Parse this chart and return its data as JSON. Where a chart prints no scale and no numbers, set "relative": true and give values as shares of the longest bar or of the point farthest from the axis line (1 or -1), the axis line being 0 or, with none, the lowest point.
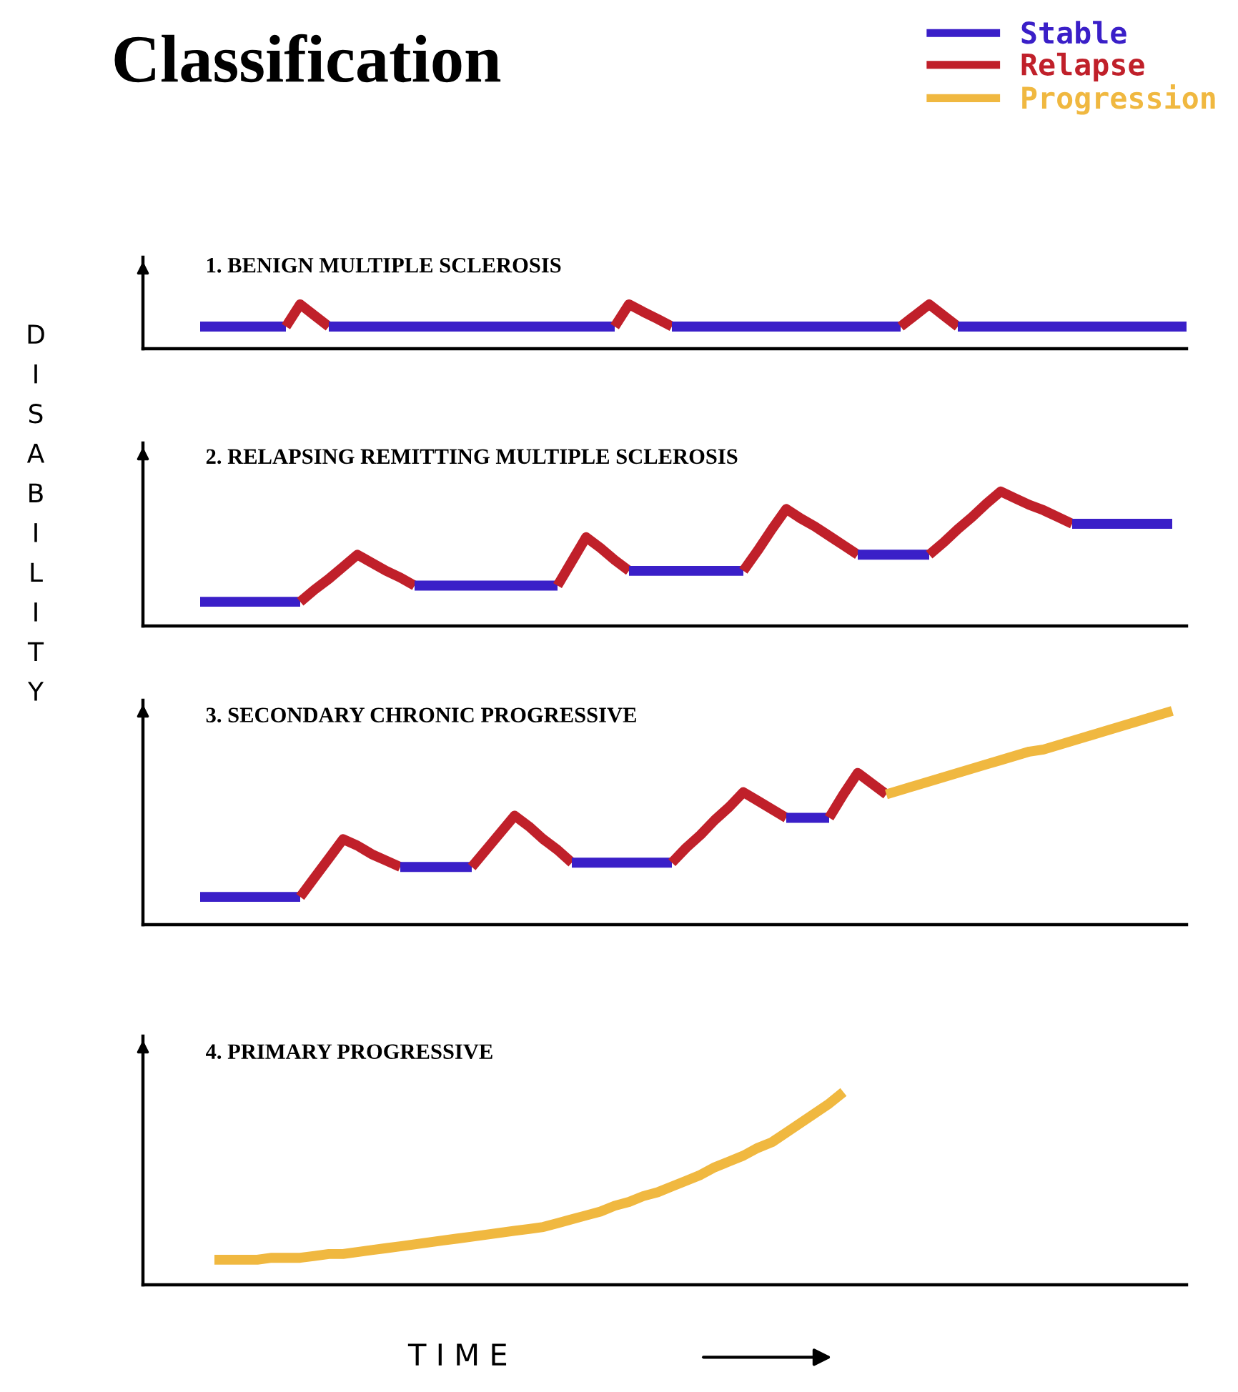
{
  "chart_data": [
    {
      "type": "line",
      "title": "Classification",
      "subtitle": "1. BENIGN MULTIPLE SCLEROSIS",
      "ylabel": "DISABILITY",
      "relative": true,
      "grid": false,
      "legend": false,
      "categories": [
        null,
        null,
        null,
        null,
        null,
        null,
        null,
        null,
        null,
        null,
        null,
        null,
        null,
        null,
        null,
        null,
        null,
        null,
        null,
        null,
        null,
        null,
        null,
        null,
        null,
        null,
        null,
        null,
        null,
        null,
        null,
        null,
        null,
        null,
        null,
        null,
        null,
        null,
        null,
        null,
        null,
        null,
        null,
        null,
        null,
        null,
        null,
        null,
        null,
        null,
        null,
        null,
        null,
        null,
        null,
        null,
        null,
        null,
        null,
        null,
        null,
        null,
        null,
        null,
        null,
        null,
        null,
        null,
        null,
        null
      ],
      "series": [
        {
          "color": "#3a1fc8",
          "values": [
            0.5,
            0.5,
            0.5,
            0.5,
            0.5,
            0.5,
            0.5,
            null,
            null,
            null,
            null,
            null,
            null,
            null,
            null,
            null,
            null,
            null,
            null,
            null,
            null,
            null,
            null,
            null,
            null,
            null,
            null,
            null,
            null,
            null,
            null,
            null,
            null,
            null,
            null,
            null,
            null,
            null,
            null,
            null,
            null,
            null,
            null,
            null,
            null,
            null,
            null,
            null,
            null,
            null,
            null,
            null,
            null,
            null,
            null,
            null,
            null,
            null,
            null,
            null,
            null,
            null,
            null,
            null,
            null,
            null,
            null,
            null,
            null,
            null
          ]
        },
        {
          "color": "#c0202a",
          "values": [
            null,
            null,
            null,
            null,
            null,
            null,
            0.5,
            1,
            0.75,
            0.5,
            null,
            null,
            null,
            null,
            null,
            null,
            null,
            null,
            null,
            null,
            null,
            null,
            null,
            null,
            null,
            null,
            null,
            null,
            null,
            null,
            null,
            null,
            null,
            null,
            null,
            null,
            null,
            null,
            null,
            null,
            null,
            null,
            null,
            null,
            null,
            null,
            null,
            null,
            null,
            null,
            null,
            null,
            null,
            null,
            null,
            null,
            null,
            null,
            null,
            null,
            null,
            null,
            null,
            null,
            null,
            null,
            null,
            null,
            null,
            null
          ]
        },
        {
          "color": "#3a1fc8",
          "values": [
            null,
            null,
            null,
            null,
            null,
            null,
            null,
            null,
            null,
            0.5,
            0.5,
            0.5,
            0.5,
            0.5,
            0.5,
            0.5,
            0.5,
            0.5,
            0.5,
            0.5,
            0.5,
            0.5,
            0.5,
            0.5,
            0.5,
            0.5,
            0.5,
            0.5,
            0.5,
            0.5,
            null,
            null,
            null,
            null,
            null,
            null,
            null,
            null,
            null,
            null,
            null,
            null,
            null,
            null,
            null,
            null,
            null,
            null,
            null,
            null,
            null,
            null,
            null,
            null,
            null,
            null,
            null,
            null,
            null,
            null,
            null,
            null,
            null,
            null,
            null,
            null,
            null,
            null,
            null,
            null
          ]
        },
        {
          "color": "#c0202a",
          "values": [
            null,
            null,
            null,
            null,
            null,
            null,
            null,
            null,
            null,
            null,
            null,
            null,
            null,
            null,
            null,
            null,
            null,
            null,
            null,
            null,
            null,
            null,
            null,
            null,
            null,
            null,
            null,
            null,
            null,
            0.5,
            1,
            0.83,
            0.67,
            0.5,
            null,
            null,
            null,
            null,
            null,
            null,
            null,
            null,
            null,
            null,
            null,
            null,
            null,
            null,
            null,
            null,
            null,
            null,
            null,
            null,
            null,
            null,
            null,
            null,
            null,
            null,
            null,
            null,
            null,
            null,
            null,
            null,
            null,
            null,
            null,
            null
          ]
        },
        {
          "color": "#3a1fc8",
          "values": [
            null,
            null,
            null,
            null,
            null,
            null,
            null,
            null,
            null,
            null,
            null,
            null,
            null,
            null,
            null,
            null,
            null,
            null,
            null,
            null,
            null,
            null,
            null,
            null,
            null,
            null,
            null,
            null,
            null,
            null,
            null,
            null,
            null,
            0.5,
            0.5,
            0.5,
            0.5,
            0.5,
            0.5,
            0.5,
            0.5,
            0.5,
            0.5,
            0.5,
            0.5,
            0.5,
            0.5,
            0.5,
            0.5,
            0.5,
            null,
            null,
            null,
            null,
            null,
            null,
            null,
            null,
            null,
            null,
            null,
            null,
            null,
            null,
            null,
            null,
            null,
            null,
            null,
            null
          ]
        },
        {
          "color": "#c0202a",
          "values": [
            null,
            null,
            null,
            null,
            null,
            null,
            null,
            null,
            null,
            null,
            null,
            null,
            null,
            null,
            null,
            null,
            null,
            null,
            null,
            null,
            null,
            null,
            null,
            null,
            null,
            null,
            null,
            null,
            null,
            null,
            null,
            null,
            null,
            null,
            null,
            null,
            null,
            null,
            null,
            null,
            null,
            null,
            null,
            null,
            null,
            null,
            null,
            null,
            null,
            0.5,
            0.75,
            1,
            0.75,
            0.5,
            null,
            null,
            null,
            null,
            null,
            null,
            null,
            null,
            null,
            null,
            null,
            null,
            null,
            null,
            null,
            null
          ]
        },
        {
          "color": "#3a1fc8",
          "values": [
            null,
            null,
            null,
            null,
            null,
            null,
            null,
            null,
            null,
            null,
            null,
            null,
            null,
            null,
            null,
            null,
            null,
            null,
            null,
            null,
            null,
            null,
            null,
            null,
            null,
            null,
            null,
            null,
            null,
            null,
            null,
            null,
            null,
            null,
            null,
            null,
            null,
            null,
            null,
            null,
            null,
            null,
            null,
            null,
            null,
            null,
            null,
            null,
            null,
            null,
            null,
            null,
            null,
            0.5,
            0.5,
            0.5,
            0.5,
            0.5,
            0.5,
            0.5,
            0.5,
            0.5,
            0.5,
            0.5,
            0.5,
            0.5,
            0.5,
            0.5,
            0.5,
            0.5
          ]
        }
      ]
    },
    {
      "type": "line",
      "subtitle": "2. RELAPSING REMITTING MULTIPLE SCLEROSIS",
      "relative": true,
      "grid": false,
      "legend": false,
      "categories": [
        null,
        null,
        null,
        null,
        null,
        null,
        null,
        null,
        null,
        null,
        null,
        null,
        null,
        null,
        null,
        null,
        null,
        null,
        null,
        null,
        null,
        null,
        null,
        null,
        null,
        null,
        null,
        null,
        null,
        null,
        null,
        null,
        null,
        null,
        null,
        null,
        null,
        null,
        null,
        null,
        null,
        null,
        null,
        null,
        null,
        null,
        null,
        null,
        null,
        null,
        null,
        null,
        null,
        null,
        null,
        null,
        null,
        null,
        null,
        null,
        null,
        null,
        null,
        null,
        null,
        null,
        null,
        null,
        null,
        null
      ],
      "series": [
        {
          "color": "#3a1fc8",
          "values": [
            0.18,
            0.18,
            0.18,
            0.18,
            0.18,
            0.18,
            0.18,
            0.18,
            null,
            null,
            null,
            null,
            null,
            null,
            null,
            null,
            null,
            null,
            null,
            null,
            null,
            null,
            null,
            null,
            null,
            null,
            null,
            null,
            null,
            null,
            null,
            null,
            null,
            null,
            null,
            null,
            null,
            null,
            null,
            null,
            null,
            null,
            null,
            null,
            null,
            null,
            null,
            null,
            null,
            null,
            null,
            null,
            null,
            null,
            null,
            null,
            null,
            null,
            null,
            null,
            null,
            null,
            null,
            null,
            null,
            null,
            null,
            null,
            null,
            null
          ]
        },
        {
          "color": "#c0202a",
          "values": [
            null,
            null,
            null,
            null,
            null,
            null,
            null,
            0.18,
            0.27,
            0.35,
            0.44,
            0.53,
            0.47,
            0.41,
            0.36,
            0.3,
            null,
            null,
            null,
            null,
            null,
            null,
            null,
            null,
            null,
            null,
            null,
            null,
            null,
            null,
            null,
            null,
            null,
            null,
            null,
            null,
            null,
            null,
            null,
            null,
            null,
            null,
            null,
            null,
            null,
            null,
            null,
            null,
            null,
            null,
            null,
            null,
            null,
            null,
            null,
            null,
            null,
            null,
            null,
            null,
            null,
            null,
            null,
            null,
            null,
            null,
            null,
            null,
            null,
            null
          ]
        },
        {
          "color": "#3a1fc8",
          "values": [
            null,
            null,
            null,
            null,
            null,
            null,
            null,
            null,
            null,
            null,
            null,
            null,
            null,
            null,
            null,
            0.3,
            0.3,
            0.3,
            0.3,
            0.3,
            0.3,
            0.3,
            0.3,
            0.3,
            0.3,
            0.3,
            null,
            null,
            null,
            null,
            null,
            null,
            null,
            null,
            null,
            null,
            null,
            null,
            null,
            null,
            null,
            null,
            null,
            null,
            null,
            null,
            null,
            null,
            null,
            null,
            null,
            null,
            null,
            null,
            null,
            null,
            null,
            null,
            null,
            null,
            null,
            null,
            null,
            null,
            null,
            null,
            null,
            null,
            null,
            null
          ]
        },
        {
          "color": "#c0202a",
          "values": [
            null,
            null,
            null,
            null,
            null,
            null,
            null,
            null,
            null,
            null,
            null,
            null,
            null,
            null,
            null,
            null,
            null,
            null,
            null,
            null,
            null,
            null,
            null,
            null,
            null,
            0.3,
            0.48,
            0.66,
            0.58,
            0.49,
            0.41,
            null,
            null,
            null,
            null,
            null,
            null,
            null,
            null,
            null,
            null,
            null,
            null,
            null,
            null,
            null,
            null,
            null,
            null,
            null,
            null,
            null,
            null,
            null,
            null,
            null,
            null,
            null,
            null,
            null,
            null,
            null,
            null,
            null,
            null,
            null,
            null,
            null,
            null,
            null
          ]
        },
        {
          "color": "#3a1fc8",
          "values": [
            null,
            null,
            null,
            null,
            null,
            null,
            null,
            null,
            null,
            null,
            null,
            null,
            null,
            null,
            null,
            null,
            null,
            null,
            null,
            null,
            null,
            null,
            null,
            null,
            null,
            null,
            null,
            null,
            null,
            null,
            0.41,
            0.41,
            0.41,
            0.41,
            0.41,
            0.41,
            0.41,
            0.41,
            0.41,
            null,
            null,
            null,
            null,
            null,
            null,
            null,
            null,
            null,
            null,
            null,
            null,
            null,
            null,
            null,
            null,
            null,
            null,
            null,
            null,
            null,
            null,
            null,
            null,
            null,
            null,
            null,
            null,
            null,
            null,
            null
          ]
        },
        {
          "color": "#c0202a",
          "values": [
            null,
            null,
            null,
            null,
            null,
            null,
            null,
            null,
            null,
            null,
            null,
            null,
            null,
            null,
            null,
            null,
            null,
            null,
            null,
            null,
            null,
            null,
            null,
            null,
            null,
            null,
            null,
            null,
            null,
            null,
            null,
            null,
            null,
            null,
            null,
            null,
            null,
            null,
            0.41,
            0.56,
            0.72,
            0.87,
            0.8,
            0.74,
            0.67,
            0.6,
            0.53,
            null,
            null,
            null,
            null,
            null,
            null,
            null,
            null,
            null,
            null,
            null,
            null,
            null,
            null,
            null,
            null,
            null,
            null,
            null,
            null,
            null,
            null,
            null
          ]
        },
        {
          "color": "#3a1fc8",
          "values": [
            null,
            null,
            null,
            null,
            null,
            null,
            null,
            null,
            null,
            null,
            null,
            null,
            null,
            null,
            null,
            null,
            null,
            null,
            null,
            null,
            null,
            null,
            null,
            null,
            null,
            null,
            null,
            null,
            null,
            null,
            null,
            null,
            null,
            null,
            null,
            null,
            null,
            null,
            null,
            null,
            null,
            null,
            null,
            null,
            null,
            null,
            0.53,
            0.53,
            0.53,
            0.53,
            0.53,
            0.53,
            null,
            null,
            null,
            null,
            null,
            null,
            null,
            null,
            null,
            null,
            null,
            null,
            null,
            null,
            null,
            null,
            null,
            null
          ]
        },
        {
          "color": "#c0202a",
          "values": [
            null,
            null,
            null,
            null,
            null,
            null,
            null,
            null,
            null,
            null,
            null,
            null,
            null,
            null,
            null,
            null,
            null,
            null,
            null,
            null,
            null,
            null,
            null,
            null,
            null,
            null,
            null,
            null,
            null,
            null,
            null,
            null,
            null,
            null,
            null,
            null,
            null,
            null,
            null,
            null,
            null,
            null,
            null,
            null,
            null,
            null,
            null,
            null,
            null,
            null,
            null,
            0.53,
            0.62,
            0.72,
            0.81,
            0.91,
            1,
            0.95,
            0.9,
            0.86,
            0.81,
            0.76,
            null,
            null,
            null,
            null,
            null,
            null,
            null,
            null
          ]
        },
        {
          "color": "#3a1fc8",
          "values": [
            null,
            null,
            null,
            null,
            null,
            null,
            null,
            null,
            null,
            null,
            null,
            null,
            null,
            null,
            null,
            null,
            null,
            null,
            null,
            null,
            null,
            null,
            null,
            null,
            null,
            null,
            null,
            null,
            null,
            null,
            null,
            null,
            null,
            null,
            null,
            null,
            null,
            null,
            null,
            null,
            null,
            null,
            null,
            null,
            null,
            null,
            null,
            null,
            null,
            null,
            null,
            null,
            null,
            null,
            null,
            null,
            null,
            null,
            null,
            null,
            null,
            0.76,
            0.76,
            0.76,
            0.76,
            0.76,
            0.76,
            0.76,
            0.76,
            null
          ]
        }
      ]
    },
    {
      "type": "line",
      "subtitle": "3. SECONDARY CHRONIC PROGRESSIVE",
      "relative": true,
      "grid": false,
      "legend": "top right",
      "categories": [
        null,
        null,
        null,
        null,
        null,
        null,
        null,
        null,
        null,
        null,
        null,
        null,
        null,
        null,
        null,
        null,
        null,
        null,
        null,
        null,
        null,
        null,
        null,
        null,
        null,
        null,
        null,
        null,
        null,
        null,
        null,
        null,
        null,
        null,
        null,
        null,
        null,
        null,
        null,
        null,
        null,
        null,
        null,
        null,
        null,
        null,
        null,
        null,
        null,
        null,
        null,
        null,
        null,
        null,
        null,
        null,
        null,
        null,
        null,
        null,
        null,
        null,
        null,
        null,
        null,
        null,
        null,
        null,
        null,
        null
      ],
      "series": [
        {
          "name": "Stable",
          "color": "#3a1fc8",
          "values": [
            0.13,
            0.13,
            0.13,
            0.13,
            0.13,
            0.13,
            0.13,
            0.13,
            null,
            null,
            null,
            null,
            null,
            null,
            null,
            null,
            null,
            null,
            null,
            null,
            null,
            null,
            null,
            null,
            null,
            null,
            null,
            null,
            null,
            null,
            null,
            null,
            null,
            null,
            null,
            null,
            null,
            null,
            null,
            null,
            null,
            null,
            null,
            null,
            null,
            null,
            null,
            null,
            null,
            null,
            null,
            null,
            null,
            null,
            null,
            null,
            null,
            null,
            null,
            null,
            null,
            null,
            null,
            null,
            null,
            null,
            null,
            null,
            null,
            null
          ]
        },
        {
          "name": "Relapse",
          "color": "#c0202a",
          "values": [
            null,
            null,
            null,
            null,
            null,
            null,
            null,
            0.13,
            0.22,
            0.31,
            0.4,
            0.37,
            0.33,
            0.3,
            0.27,
            null,
            null,
            null,
            null,
            null,
            null,
            null,
            null,
            null,
            null,
            null,
            null,
            null,
            null,
            null,
            null,
            null,
            null,
            null,
            null,
            null,
            null,
            null,
            null,
            null,
            null,
            null,
            null,
            null,
            null,
            null,
            null,
            null,
            null,
            null,
            null,
            null,
            null,
            null,
            null,
            null,
            null,
            null,
            null,
            null,
            null,
            null,
            null,
            null,
            null,
            null,
            null,
            null,
            null,
            null
          ]
        },
        {
          "color": "#3a1fc8",
          "values": [
            null,
            null,
            null,
            null,
            null,
            null,
            null,
            null,
            null,
            null,
            null,
            null,
            null,
            null,
            0.27,
            0.27,
            0.27,
            0.27,
            0.27,
            0.27,
            null,
            null,
            null,
            null,
            null,
            null,
            null,
            null,
            null,
            null,
            null,
            null,
            null,
            null,
            null,
            null,
            null,
            null,
            null,
            null,
            null,
            null,
            null,
            null,
            null,
            null,
            null,
            null,
            null,
            null,
            null,
            null,
            null,
            null,
            null,
            null,
            null,
            null,
            null,
            null,
            null,
            null,
            null,
            null,
            null,
            null,
            null,
            null,
            null,
            null
          ]
        },
        {
          "color": "#c0202a",
          "values": [
            null,
            null,
            null,
            null,
            null,
            null,
            null,
            null,
            null,
            null,
            null,
            null,
            null,
            null,
            null,
            null,
            null,
            null,
            null,
            0.27,
            0.35,
            0.43,
            0.51,
            0.46,
            0.4,
            0.35,
            0.29,
            null,
            null,
            null,
            null,
            null,
            null,
            null,
            null,
            null,
            null,
            null,
            null,
            null,
            null,
            null,
            null,
            null,
            null,
            null,
            null,
            null,
            null,
            null,
            null,
            null,
            null,
            null,
            null,
            null,
            null,
            null,
            null,
            null,
            null,
            null,
            null,
            null,
            null,
            null,
            null,
            null,
            null,
            null
          ]
        },
        {
          "color": "#3a1fc8",
          "values": [
            null,
            null,
            null,
            null,
            null,
            null,
            null,
            null,
            null,
            null,
            null,
            null,
            null,
            null,
            null,
            null,
            null,
            null,
            null,
            null,
            null,
            null,
            null,
            null,
            null,
            null,
            0.29,
            0.29,
            0.29,
            0.29,
            0.29,
            0.29,
            0.29,
            0.29,
            null,
            null,
            null,
            null,
            null,
            null,
            null,
            null,
            null,
            null,
            null,
            null,
            null,
            null,
            null,
            null,
            null,
            null,
            null,
            null,
            null,
            null,
            null,
            null,
            null,
            null,
            null,
            null,
            null,
            null,
            null,
            null,
            null,
            null,
            null,
            null
          ]
        },
        {
          "color": "#c0202a",
          "values": [
            null,
            null,
            null,
            null,
            null,
            null,
            null,
            null,
            null,
            null,
            null,
            null,
            null,
            null,
            null,
            null,
            null,
            null,
            null,
            null,
            null,
            null,
            null,
            null,
            null,
            null,
            null,
            null,
            null,
            null,
            null,
            null,
            null,
            0.29,
            0.36,
            0.42,
            0.49,
            0.55,
            0.62,
            0.58,
            0.54,
            0.5,
            null,
            null,
            null,
            null,
            null,
            null,
            null,
            null,
            null,
            null,
            null,
            null,
            null,
            null,
            null,
            null,
            null,
            null,
            null,
            null,
            null,
            null,
            null,
            null,
            null,
            null,
            null,
            null
          ]
        },
        {
          "color": "#3a1fc8",
          "values": [
            null,
            null,
            null,
            null,
            null,
            null,
            null,
            null,
            null,
            null,
            null,
            null,
            null,
            null,
            null,
            null,
            null,
            null,
            null,
            null,
            null,
            null,
            null,
            null,
            null,
            null,
            null,
            null,
            null,
            null,
            null,
            null,
            null,
            null,
            null,
            null,
            null,
            null,
            null,
            null,
            null,
            0.5,
            0.5,
            0.5,
            0.5,
            null,
            null,
            null,
            null,
            null,
            null,
            null,
            null,
            null,
            null,
            null,
            null,
            null,
            null,
            null,
            null,
            null,
            null,
            null,
            null,
            null,
            null,
            null,
            null,
            null
          ]
        },
        {
          "color": "#c0202a",
          "values": [
            null,
            null,
            null,
            null,
            null,
            null,
            null,
            null,
            null,
            null,
            null,
            null,
            null,
            null,
            null,
            null,
            null,
            null,
            null,
            null,
            null,
            null,
            null,
            null,
            null,
            null,
            null,
            null,
            null,
            null,
            null,
            null,
            null,
            null,
            null,
            null,
            null,
            null,
            null,
            null,
            null,
            null,
            null,
            null,
            0.5,
            0.61,
            0.71,
            0.66,
            0.61,
            null,
            null,
            null,
            null,
            null,
            null,
            null,
            null,
            null,
            null,
            null,
            null,
            null,
            null,
            null,
            null,
            null,
            null,
            null,
            null,
            null
          ]
        },
        {
          "name": "Progression",
          "color": "#f0b840",
          "values": [
            null,
            null,
            null,
            null,
            null,
            null,
            null,
            null,
            null,
            null,
            null,
            null,
            null,
            null,
            null,
            null,
            null,
            null,
            null,
            null,
            null,
            null,
            null,
            null,
            null,
            null,
            null,
            null,
            null,
            null,
            null,
            null,
            null,
            null,
            null,
            null,
            null,
            null,
            null,
            null,
            null,
            null,
            null,
            null,
            null,
            null,
            null,
            null,
            0.61,
            0.63,
            0.65,
            0.67,
            0.69,
            0.71,
            0.73,
            0.75,
            0.77,
            0.79,
            0.81,
            0.82,
            0.84,
            0.86,
            0.88,
            0.9,
            0.92,
            0.94,
            0.96,
            0.98,
            1,
            null
          ]
        }
      ]
    },
    {
      "type": "line",
      "subtitle": "4. PRIMARY PROGRESSIVE",
      "xlabel": "T I M E",
      "relative": true,
      "grid": false,
      "legend": false,
      "categories": [
        null,
        null,
        null,
        null,
        null,
        null,
        null,
        null,
        null,
        null,
        null,
        null,
        null,
        null,
        null,
        null,
        null,
        null,
        null,
        null,
        null,
        null,
        null,
        null,
        null,
        null,
        null,
        null,
        null,
        null,
        null,
        null,
        null,
        null,
        null,
        null,
        null,
        null,
        null,
        null,
        null,
        null,
        null,
        null,
        null,
        null,
        null,
        null,
        null,
        null,
        null,
        null,
        null,
        null,
        null,
        null,
        null,
        null,
        null,
        null,
        null,
        null,
        null,
        null,
        null,
        null,
        null,
        null,
        null,
        null
      ],
      "series": [
        {
          "color": "#f0b840",
          "values": [
            null,
            0.13,
            0.13,
            0.13,
            0.13,
            0.14,
            0.14,
            0.14,
            0.15,
            0.16,
            0.16,
            0.17,
            0.18,
            0.19,
            0.2,
            0.21,
            0.22,
            0.23,
            0.24,
            0.25,
            0.26,
            0.27,
            0.28,
            0.29,
            0.3,
            0.32,
            0.34,
            0.36,
            0.38,
            0.41,
            0.43,
            0.46,
            0.48,
            0.51,
            0.54,
            0.57,
            0.61,
            0.64,
            0.67,
            0.71,
            0.74,
            0.79,
            0.84,
            0.89,
            0.94,
            1,
            null,
            null,
            null,
            null,
            null,
            null,
            null,
            null,
            null,
            null,
            null,
            null,
            null,
            null,
            null,
            null,
            null,
            null,
            null,
            null,
            null,
            null,
            null,
            null
          ]
        }
      ]
    }
  ]
}
